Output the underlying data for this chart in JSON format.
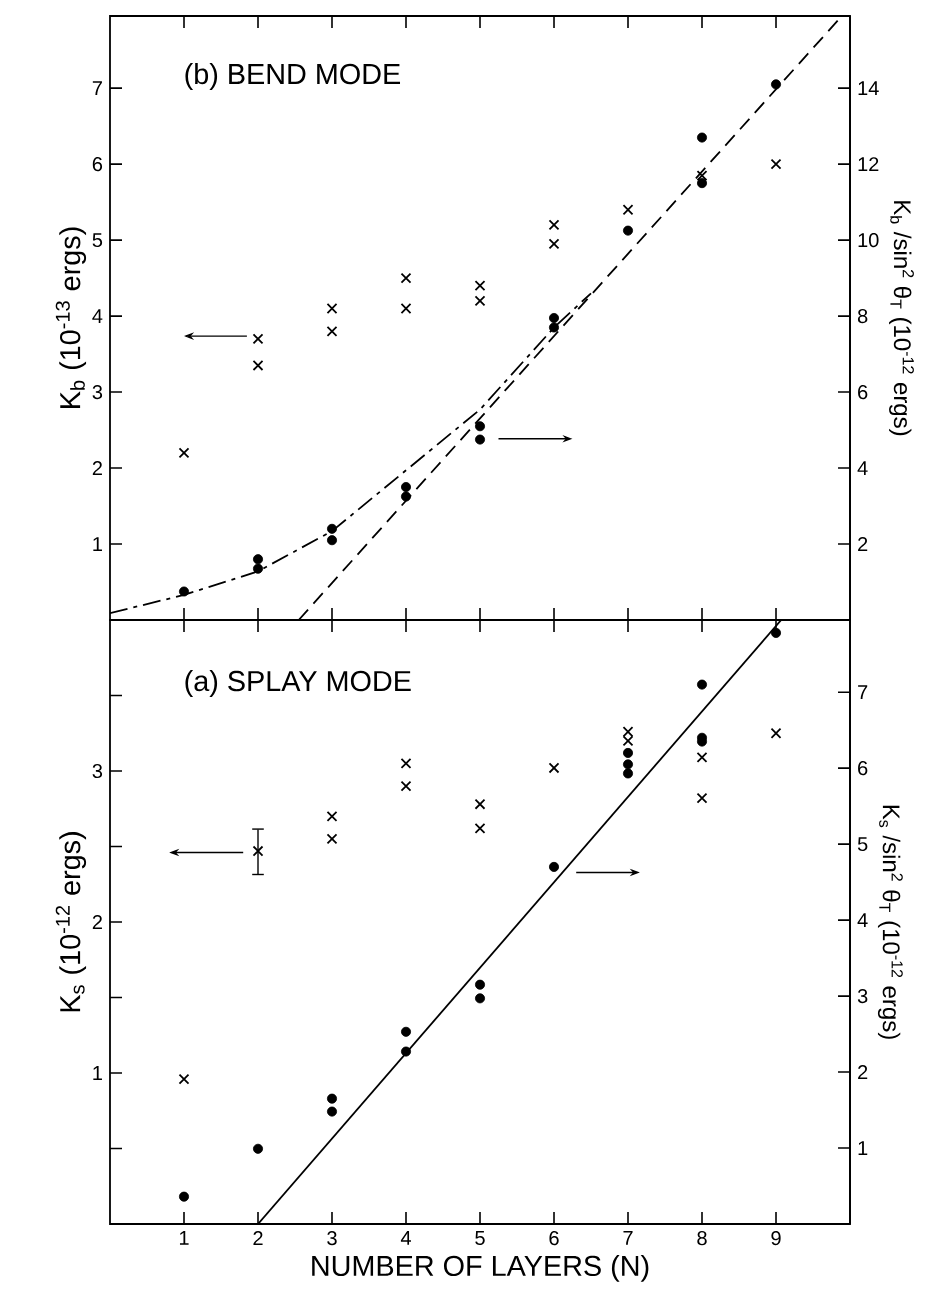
{
  "chart_data": [
    {
      "type": "scatter",
      "title": "(b) BEND MODE",
      "ylabel": "K$_{b}$ (10$^{-13}$ ergs)",
      "y2label": "K$_{b}$ /sin$^{2}$ θ$_{T}$ (10$^{-12}$ ergs)",
      "xlim": [
        0,
        10
      ],
      "xticks": [
        1,
        2,
        3,
        4,
        5,
        6,
        7,
        8,
        9
      ],
      "ylim": [
        0,
        7.95
      ],
      "yticks": [
        1,
        2,
        3,
        4,
        5,
        6,
        7
      ],
      "y2lim": [
        0,
        15.9
      ],
      "y2ticks": [
        2,
        4,
        6,
        8,
        10,
        12,
        14
      ],
      "tick_labels": "y",
      "grid": false,
      "series": [
        {
          "marker": "cross",
          "color": "#000000",
          "x": [
            1,
            2,
            2,
            3,
            3,
            4,
            4,
            5,
            5,
            6,
            6,
            7,
            8,
            9
          ],
          "values": [
            2.2,
            3.7,
            3.35,
            4.1,
            3.8,
            4.5,
            4.1,
            4.4,
            4.2,
            5.2,
            4.95,
            5.4,
            5.85,
            6.0
          ]
        },
        {
          "marker": "circle",
          "axis": "y2",
          "color": "#000000",
          "x": [
            1,
            2,
            2,
            3,
            3,
            4,
            4,
            5,
            5,
            6,
            6,
            7,
            8,
            8,
            9
          ],
          "values": [
            0.75,
            1.6,
            1.35,
            2.4,
            2.1,
            3.5,
            3.25,
            5.1,
            4.75,
            7.95,
            7.7,
            10.25,
            12.7,
            11.5,
            14.1
          ]
        },
        {
          "type": "line",
          "marker": "none",
          "line_style": "dashdot",
          "axis": "y2",
          "color": "#000000",
          "x": [
            0,
            1,
            2,
            3,
            4,
            5,
            6,
            6.5
          ],
          "values": [
            0.18,
            0.66,
            1.28,
            2.34,
            3.94,
            5.54,
            7.7,
            8.6
          ]
        },
        {
          "type": "line",
          "marker": "none",
          "line_style": "dashed",
          "axis": "y2",
          "color": "#000000",
          "x": [
            2.55,
            9.89
          ],
          "values": [
            0,
            15.9
          ]
        }
      ]
    },
    {
      "type": "scatter",
      "title": "(a) SPLAY MODE",
      "xlabel": "NUMBER OF LAYERS (N)",
      "ylabel": "K$_{s}$ (10$^{-12}$ ergs)",
      "y2label": "K$_{s}$ /sin$^{2}$ θ$_{T}$ (10$^{-12}$ ergs)",
      "xlim": [
        0,
        10
      ],
      "xticks": [
        1,
        2,
        3,
        4,
        5,
        6,
        7,
        8,
        9
      ],
      "ylim": [
        0,
        4
      ],
      "yticks": [
        {
          "value": 0.5,
          "label": null
        },
        1,
        {
          "value": 1.5,
          "label": null
        },
        2,
        {
          "value": 2.5,
          "label": null
        },
        3,
        {
          "value": 3.5,
          "label": null
        }
      ],
      "y2lim": [
        0,
        7.95
      ],
      "y2ticks": [
        1,
        2,
        3,
        4,
        5,
        6,
        7
      ],
      "grid": false,
      "series": [
        {
          "marker": "cross",
          "color": "#000000",
          "x": [
            1,
            2,
            3,
            3,
            4,
            4,
            5,
            5,
            6,
            7,
            7,
            8,
            8,
            9
          ],
          "values": [
            0.96,
            2.47,
            2.7,
            2.55,
            3.05,
            2.9,
            2.78,
            2.62,
            3.02,
            3.26,
            3.2,
            3.09,
            2.82,
            3.25
          ],
          "errors": [
            null,
            [
              2.31,
              2.62
            ],
            null,
            null,
            null,
            null,
            null,
            null,
            null,
            null,
            null,
            null,
            null,
            null
          ]
        },
        {
          "marker": "circle",
          "axis": "y2",
          "color": "#000000",
          "x": [
            1,
            2,
            3,
            3,
            4,
            4,
            5,
            5,
            6,
            7,
            7,
            7,
            8,
            8,
            8,
            9
          ],
          "values": [
            0.36,
            0.99,
            1.65,
            1.48,
            2.53,
            2.27,
            3.15,
            2.97,
            4.7,
            6.2,
            6.05,
            5.93,
            7.1,
            6.4,
            6.35,
            7.78
          ]
        },
        {
          "type": "line",
          "marker": "none",
          "line_style": "solid",
          "axis": "y2",
          "color": "#000000",
          "x": [
            2,
            9.07
          ],
          "values": [
            0,
            7.95
          ]
        }
      ]
    }
  ]
}
